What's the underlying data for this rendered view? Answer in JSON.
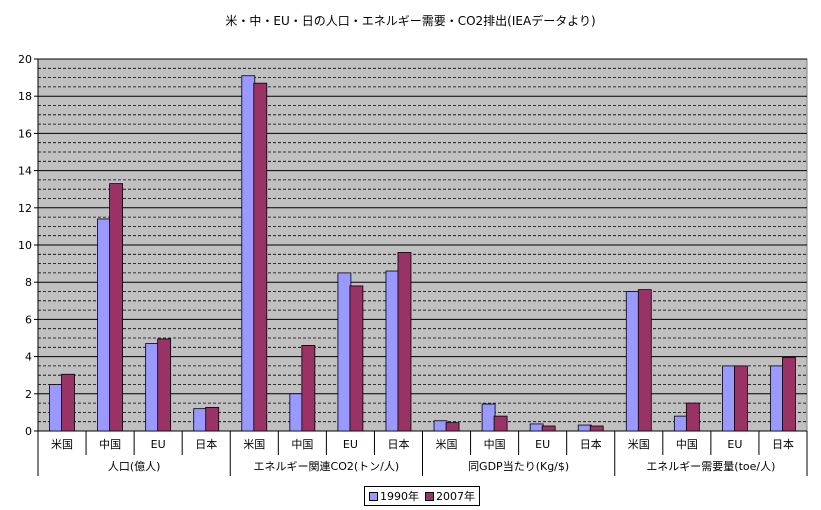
{
  "chart_data": {
    "type": "bar",
    "title": "米・中・EU・日の人口・エネルギー需要・CO2排出(IEAデータより)",
    "ylim": [
      0,
      20
    ],
    "yticks": [
      0,
      2,
      4,
      6,
      8,
      10,
      12,
      14,
      16,
      18,
      20
    ],
    "ytick_labels": [
      "0",
      "2",
      "4",
      "6",
      "8",
      "10",
      "12",
      "14",
      "16",
      "18",
      "20"
    ],
    "grid": true,
    "legend_position": "bottom",
    "groups": [
      {
        "label": "人口(億人)",
        "categories": [
          "米国",
          "中国",
          "EU",
          "日本"
        ]
      },
      {
        "label": "エネルギー関連CO2(トン/人)",
        "categories": [
          "米国",
          "中国",
          "EU",
          "日本"
        ]
      },
      {
        "label": "同GDP当たり(Kg/$)",
        "categories": [
          "米国",
          "中国",
          "EU",
          "日本"
        ]
      },
      {
        "label": "エネルギー需要量(toe/人)",
        "categories": [
          "米国",
          "中国",
          "EU",
          "日本"
        ]
      }
    ],
    "series": [
      {
        "name": "1990年",
        "color": "#9999ff",
        "values": [
          2.5,
          11.4,
          4.7,
          1.2,
          19.1,
          2.0,
          8.5,
          8.6,
          0.55,
          1.45,
          0.38,
          0.32,
          7.5,
          0.8,
          3.5,
          3.5
        ]
      },
      {
        "name": "2007年",
        "color": "#993366",
        "values": [
          3.05,
          13.3,
          4.95,
          1.27,
          18.7,
          4.6,
          7.8,
          9.6,
          0.45,
          0.8,
          0.27,
          0.27,
          7.6,
          1.5,
          3.5,
          3.95
        ]
      }
    ]
  }
}
